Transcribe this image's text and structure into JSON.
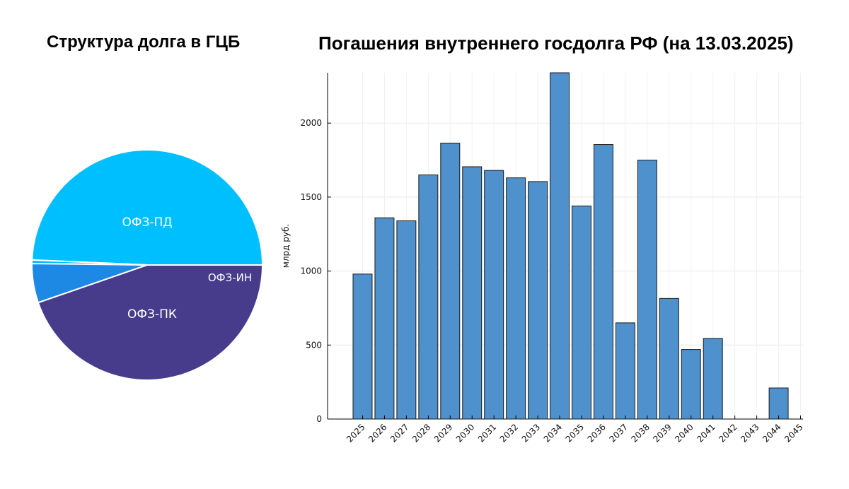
{
  "pie_title": "Структура долга в ГЦБ",
  "bar_title": "Погашения внутреннего госдолга РФ (на 13.03.2025)",
  "chart_data": [
    {
      "type": "pie",
      "title": "Структура долга в ГЦБ",
      "slices": [
        {
          "label": "ОФЗ-ПД",
          "value": 49.3,
          "color": "#00bfff"
        },
        {
          "label": "",
          "value": 0.5,
          "color": "#00bfff"
        },
        {
          "label": "ОФЗ-ИН",
          "value": 5.5,
          "color": "#1e88e5"
        },
        {
          "label": "ОФЗ-ПК",
          "value": 44.7,
          "color": "#473c8b"
        }
      ]
    },
    {
      "type": "bar",
      "title": "Погашения внутреннего госдолга РФ (на 13.03.2025)",
      "xlabel": "",
      "ylabel": "млрд руб.",
      "ylim": [
        0,
        2340
      ],
      "yticks": [
        0,
        500,
        1000,
        1500,
        2000
      ],
      "grid": true,
      "bar_color": "#4e91cd",
      "categories": [
        "2025",
        "2026",
        "2027",
        "2028",
        "2029",
        "2030",
        "2031",
        "2032",
        "2033",
        "2034",
        "2035",
        "2036",
        "2037",
        "2038",
        "2039",
        "2040",
        "2041",
        "2042",
        "2043",
        "2044",
        "2045"
      ],
      "values": [
        980,
        1360,
        1340,
        1650,
        1865,
        1705,
        1680,
        1630,
        1605,
        2340,
        1440,
        1855,
        650,
        1750,
        815,
        470,
        545,
        0,
        0,
        210,
        0
      ]
    }
  ]
}
